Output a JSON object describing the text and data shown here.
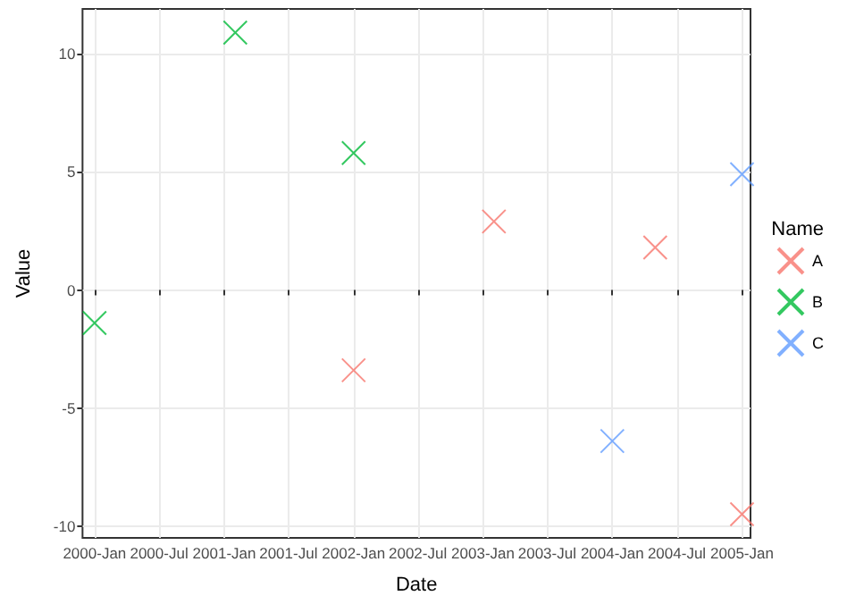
{
  "chart_data": {
    "type": "scatter",
    "xlabel": "Date",
    "ylabel": "Value",
    "legend_title": "Name",
    "xlim": [
      "1999-11-28",
      "2005-01-25"
    ],
    "ylim": [
      -10.5,
      11.9
    ],
    "xticks": [
      {
        "value": "2000-01",
        "label": "2000-Jan"
      },
      {
        "value": "2000-07",
        "label": "2000-Jul"
      },
      {
        "value": "2001-01",
        "label": "2001-Jan"
      },
      {
        "value": "2001-07",
        "label": "2001-Jul"
      },
      {
        "value": "2002-01",
        "label": "2002-Jan"
      },
      {
        "value": "2002-07",
        "label": "2002-Jul"
      },
      {
        "value": "2003-01",
        "label": "2003-Jan"
      },
      {
        "value": "2003-07",
        "label": "2003-Jul"
      },
      {
        "value": "2004-01",
        "label": "2004-Jan"
      },
      {
        "value": "2004-07",
        "label": "2004-Jul"
      },
      {
        "value": "2005-01",
        "label": "2005-Jan"
      }
    ],
    "yticks": [
      -10,
      -5,
      0,
      5,
      10
    ],
    "grid": true,
    "legend": "right",
    "marker": "cross",
    "series": [
      {
        "name": "A",
        "color": "#f8766d",
        "x": [
          "2002-01",
          "2003-02",
          "2004-05",
          "2005-01"
        ],
        "values": [
          -3.4,
          2.9,
          1.8,
          -9.5
        ]
      },
      {
        "name": "B",
        "color": "#00ba38",
        "x": [
          "2000-01",
          "2001-02",
          "2002-01"
        ],
        "values": [
          -1.4,
          10.9,
          5.8
        ]
      },
      {
        "name": "C",
        "color": "#619cff",
        "x": [
          "2004-01",
          "2005-01"
        ],
        "values": [
          -6.4,
          4.9
        ]
      }
    ]
  }
}
